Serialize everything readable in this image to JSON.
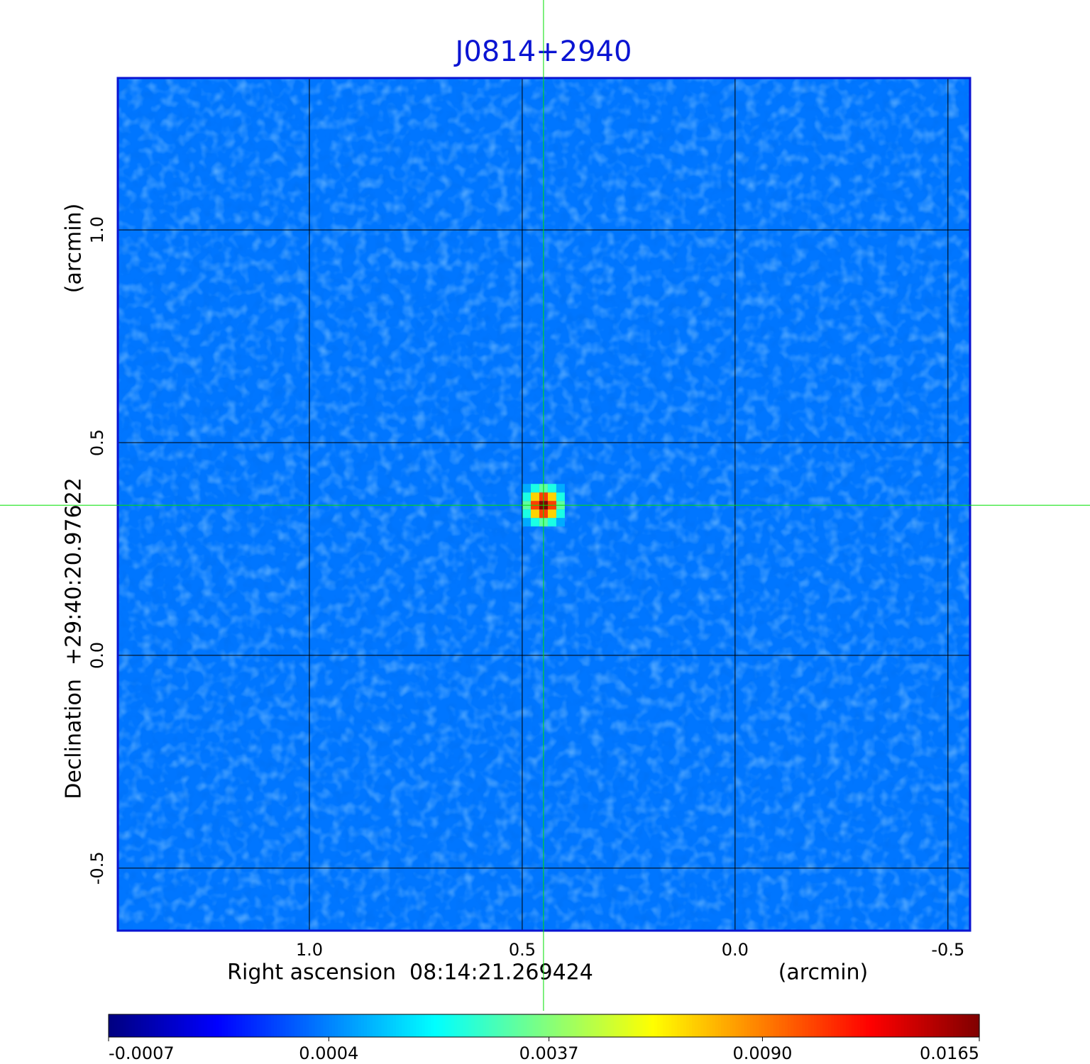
{
  "chart_data": {
    "type": "image",
    "title": "J0814+2940",
    "xlabel": "Right ascension  08:14:21.269424",
    "xunit": "(arcmin)",
    "ylabel": "Declination  +29:40:20.97622",
    "yunit": "(arcmin)",
    "xlim": [
      1.45,
      -0.552
    ],
    "ylim": [
      -0.647,
      1.357
    ],
    "xticks": [
      {
        "value": 1,
        "label": "1.0"
      },
      0.5,
      {
        "value": 0,
        "label": "0.0"
      },
      -0.5
    ],
    "yticks": [
      -0.5,
      {
        "value": 0,
        "label": "0.0"
      },
      0.5,
      {
        "value": 1,
        "label": "1.0"
      }
    ],
    "grid": true,
    "colormap": "jet",
    "color_scale": "sqrt",
    "clim": [
      -0.0007,
      0.0165
    ],
    "cticks": [
      -0.0007,
      0.0004,
      0.0037,
      {
        "value": 0.009,
        "label": "0.0090"
      },
      0.0165
    ],
    "background_level": 0.0003,
    "source": {
      "x": 0.45,
      "y": 0.353,
      "peak": 0.0165,
      "fwhm": 0.05
    },
    "crosshair": {
      "x": 0.45,
      "y": 0.353
    }
  }
}
